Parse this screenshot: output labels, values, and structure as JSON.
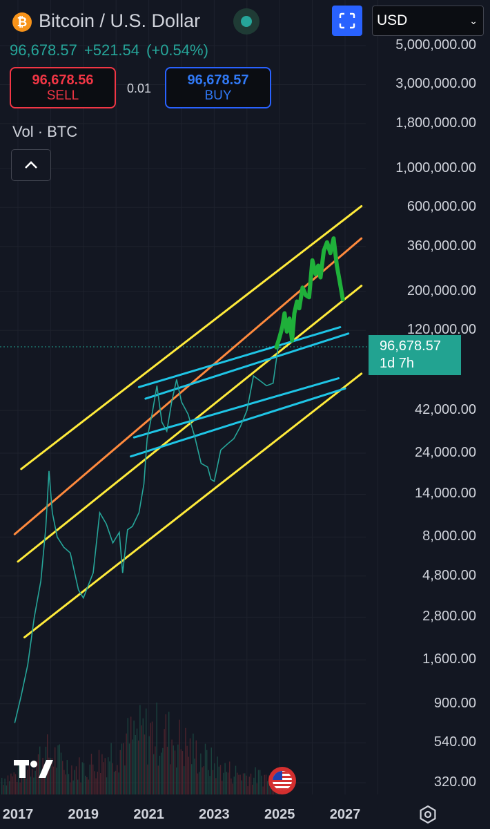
{
  "header": {
    "title": "Bitcoin / U.S. Dollar",
    "currency": "USD",
    "last_price": "96,678.57",
    "change": "+521.54",
    "change_pct": "(+0.54%)",
    "colors": {
      "up": "#26a69a",
      "sell": "#f23645",
      "buy": "#2962ff",
      "accent": "#2962ff"
    }
  },
  "trade": {
    "sell_price": "96,678.56",
    "sell_label": "SELL",
    "spread": "0.01",
    "buy_price": "96,678.57",
    "buy_label": "BUY"
  },
  "indicator": {
    "label": "Vol · BTC"
  },
  "icons": {
    "logo": "bitcoin-icon",
    "status": "market-status-dot",
    "fullscreen": "fullscreen-icon",
    "collapse": "chevron-up-icon",
    "brand": "tradingview-logo",
    "flag": "us-flag-icon",
    "settings": "settings-icon"
  },
  "price_tag": {
    "value": "96,678.57",
    "countdown": "1d 7h"
  },
  "chart_data": {
    "type": "line",
    "y_scale": "log",
    "ylim": [
      270,
      6500000
    ],
    "xlim": [
      2016.9,
      2027.5
    ],
    "current_price": 96678.57,
    "y_ticks": [
      "5,000,000.00",
      "3,000,000.00",
      "1,800,000.00",
      "1,000,000.00",
      "600,000.00",
      "360,000.00",
      "200,000.00",
      "120,000.00",
      "42,000.00",
      "24,000.00",
      "14,000.00",
      "8,000.00",
      "4,800.00",
      "2,800.00",
      "1,600.00",
      "900.00",
      "540.00",
      "320.00"
    ],
    "y_tick_values": [
      5000000,
      3000000,
      1800000,
      1000000,
      600000,
      360000,
      200000,
      120000,
      42000,
      24000,
      14000,
      8000,
      4800,
      2800,
      1600,
      900,
      540,
      320
    ],
    "x_ticks": [
      "2017",
      "2019",
      "2021",
      "2023",
      "2025",
      "2027"
    ],
    "x_tick_values": [
      2017,
      2019,
      2021,
      2023,
      2025,
      2027
    ],
    "price_series": {
      "x": [
        2016.9,
        2017.1,
        2017.3,
        2017.5,
        2017.7,
        2017.85,
        2017.95,
        2018.05,
        2018.2,
        2018.4,
        2018.6,
        2018.85,
        2019.0,
        2019.3,
        2019.5,
        2019.7,
        2019.9,
        2020.1,
        2020.2,
        2020.35,
        2020.5,
        2020.7,
        2020.85,
        2020.95,
        2021.1,
        2021.25,
        2021.4,
        2021.55,
        2021.7,
        2021.85,
        2022.0,
        2022.2,
        2022.4,
        2022.6,
        2022.8,
        2022.9,
        2023.0,
        2023.2,
        2023.4,
        2023.6,
        2023.8,
        2024.0,
        2024.2,
        2024.4,
        2024.6,
        2024.8,
        2024.95,
        2025.05
      ],
      "y": [
        700,
        1000,
        1500,
        2800,
        4500,
        9000,
        19000,
        11000,
        8000,
        7000,
        6500,
        4000,
        3600,
        5000,
        11000,
        9500,
        7400,
        8500,
        5000,
        8800,
        9200,
        11000,
        16000,
        29000,
        40000,
        58000,
        36000,
        32000,
        47000,
        63000,
        47000,
        40000,
        30000,
        21000,
        20000,
        17000,
        16600,
        25000,
        27000,
        29000,
        34000,
        42000,
        66000,
        62000,
        58000,
        60000,
        95000,
        96678
      ]
    },
    "forecast_series": {
      "x": [
        2024.9,
        2025.0,
        2025.08,
        2025.15,
        2025.22,
        2025.3,
        2025.38,
        2025.45,
        2025.53,
        2025.6,
        2025.7,
        2025.8,
        2025.9,
        2026.0,
        2026.1,
        2026.18,
        2026.25,
        2026.35,
        2026.45,
        2026.55,
        2026.65,
        2026.75,
        2026.85,
        2026.93
      ],
      "y": [
        96000,
        110000,
        125000,
        150000,
        118000,
        140000,
        105000,
        150000,
        175000,
        160000,
        210000,
        190000,
        185000,
        300000,
        250000,
        280000,
        240000,
        340000,
        380000,
        330000,
        400000,
        280000,
        220000,
        180000
      ]
    },
    "trend_lines": [
      {
        "name": "yellow-upper",
        "color": "#ffeb3b",
        "x": [
          2017.1,
          2027.5
        ],
        "y": [
          19500,
          610000
        ]
      },
      {
        "name": "orange-middle",
        "color": "#ff8a3d",
        "x": [
          2016.9,
          2027.5
        ],
        "y": [
          8300,
          400000
        ]
      },
      {
        "name": "yellow-mid",
        "color": "#ffeb3b",
        "x": [
          2017.0,
          2027.5
        ],
        "y": [
          5800,
          215000
        ]
      },
      {
        "name": "yellow-lower",
        "color": "#ffeb3b",
        "x": [
          2017.2,
          2027.5
        ],
        "y": [
          2150,
          68000
        ]
      },
      {
        "name": "cyan-1",
        "color": "#1fc5e6",
        "x": [
          2020.7,
          2026.85
        ],
        "y": [
          57000,
          125000
        ]
      },
      {
        "name": "cyan-2",
        "color": "#1fc5e6",
        "x": [
          2020.9,
          2027.1
        ],
        "y": [
          49000,
          115000
        ]
      },
      {
        "name": "cyan-3",
        "color": "#1fc5e6",
        "x": [
          2020.55,
          2026.8
        ],
        "y": [
          29500,
          64000
        ]
      },
      {
        "name": "cyan-4",
        "color": "#1fc5e6",
        "x": [
          2020.45,
          2027.0
        ],
        "y": [
          23000,
          56000
        ]
      }
    ]
  }
}
